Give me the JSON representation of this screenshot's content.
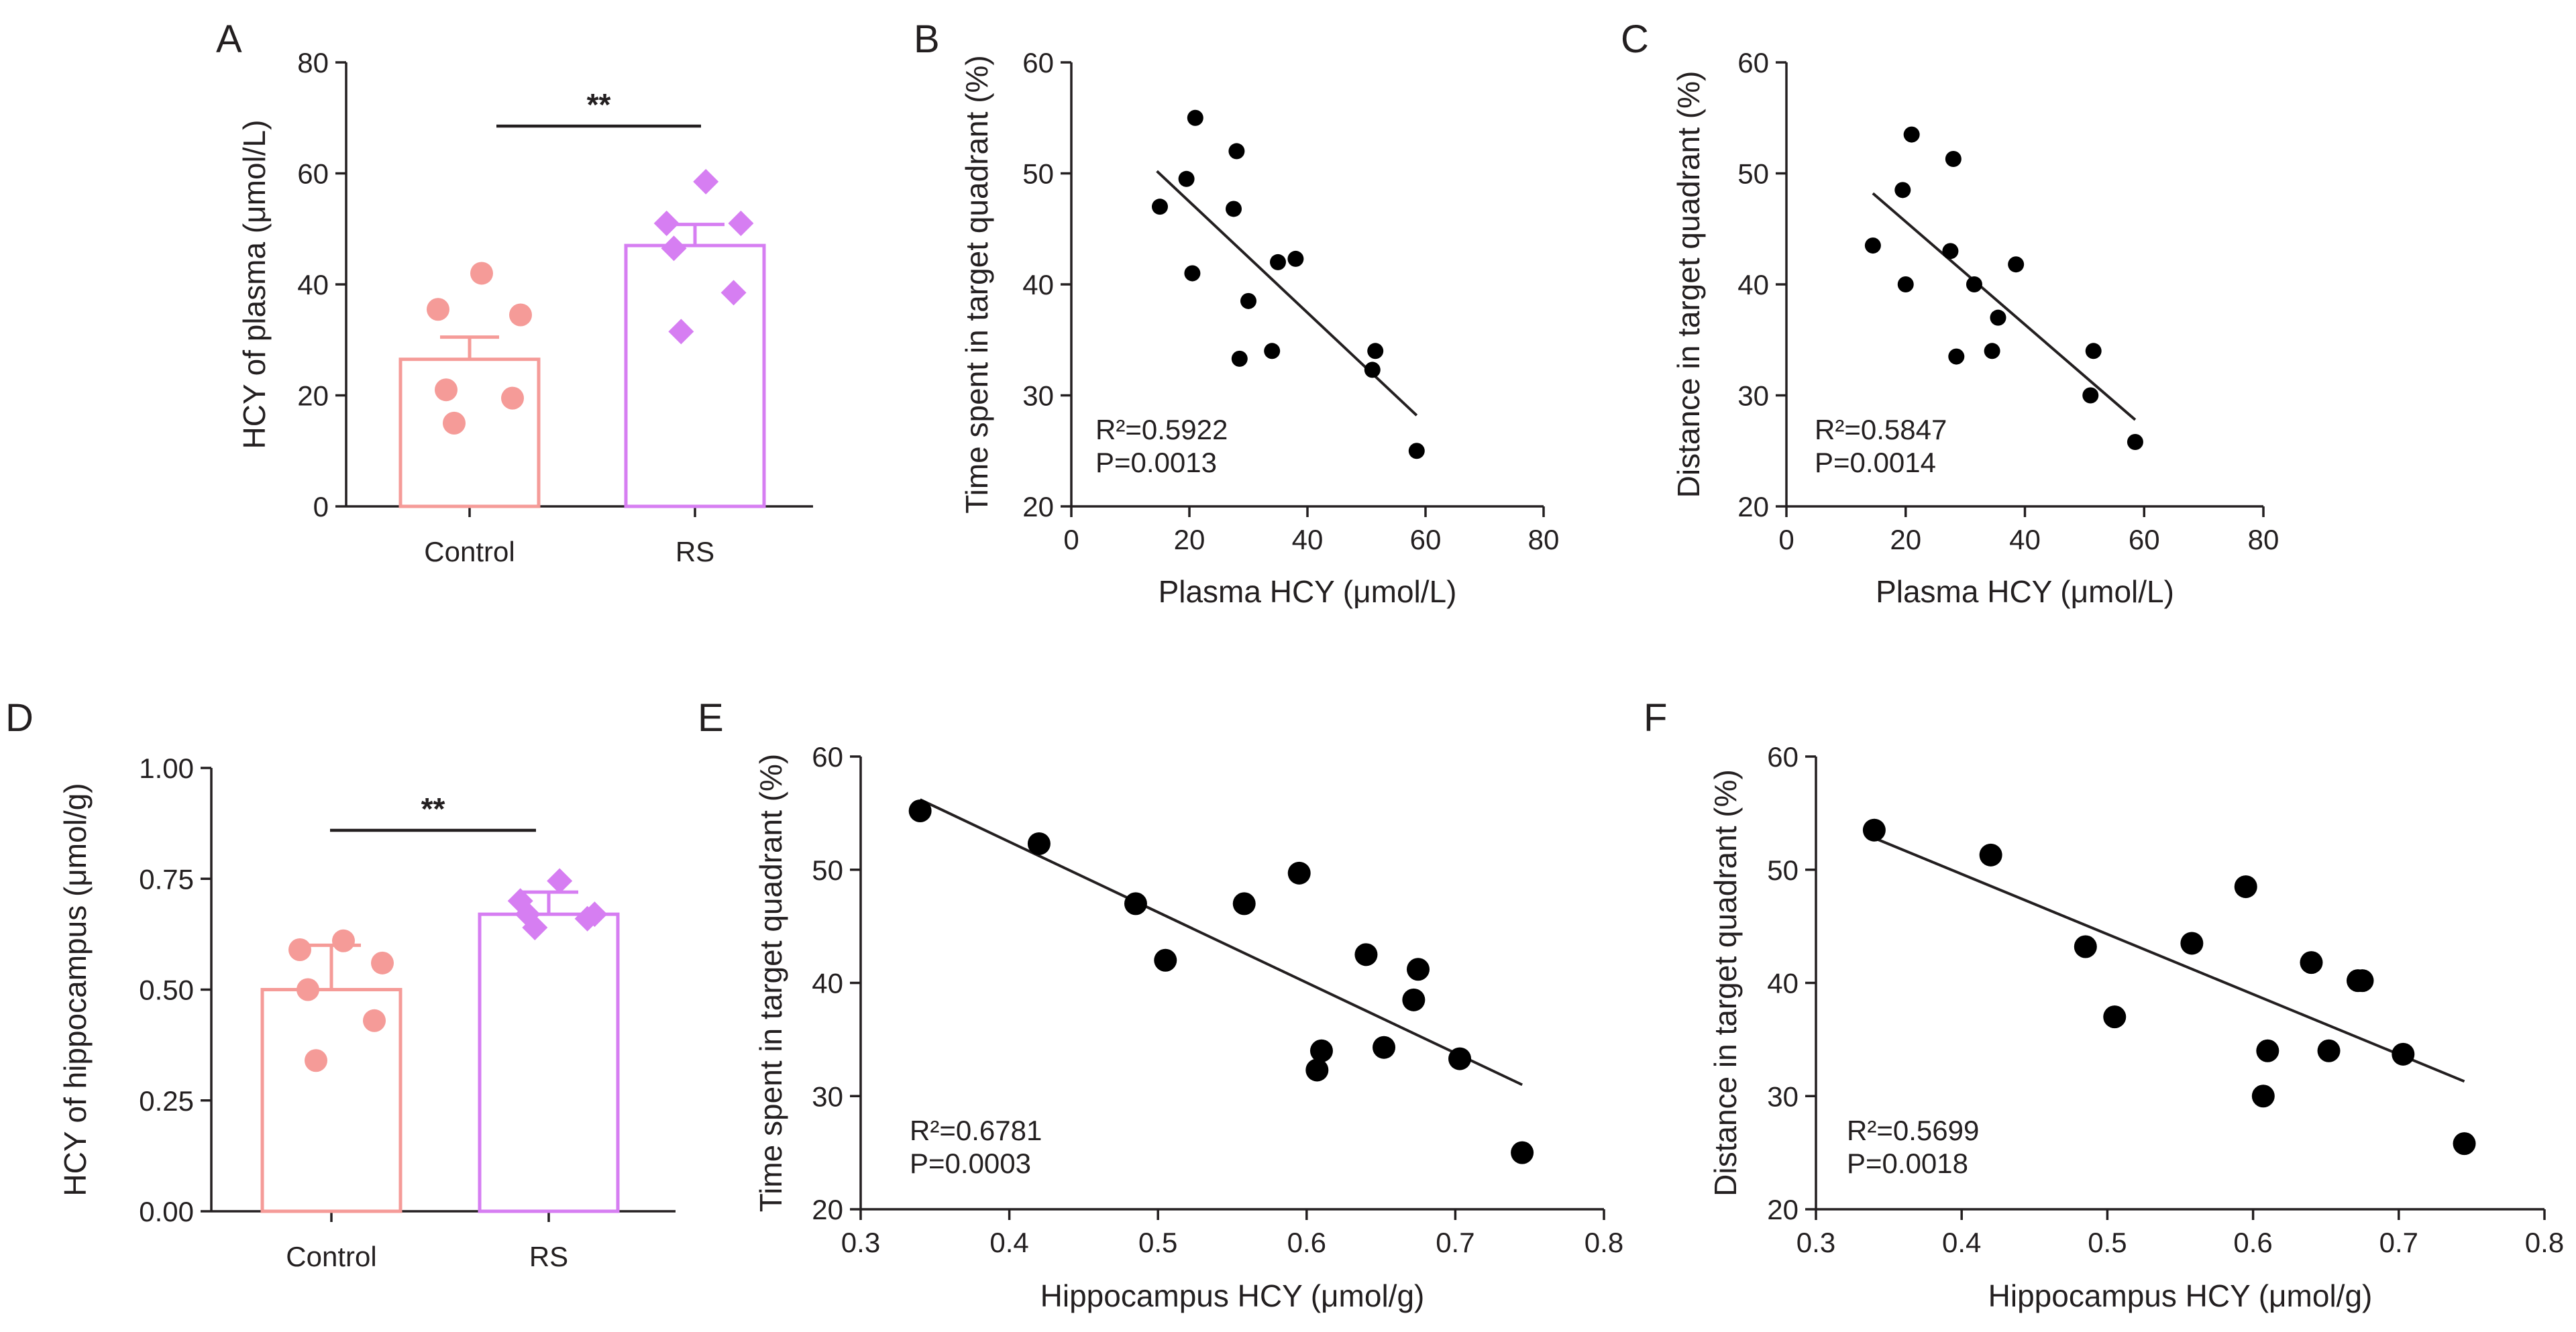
{
  "figure": {
    "colors": {
      "control": "#f59b98",
      "rs": "#d67ef2",
      "ink": "#231f20"
    }
  },
  "chart_data": [
    {
      "id": "A",
      "panel_label": "A",
      "type": "bar",
      "ylabel": "HCY of plasma (μmol/L)",
      "categories": [
        "Control",
        "RS"
      ],
      "means": [
        26.5,
        47.0
      ],
      "sem": [
        4.0,
        3.8
      ],
      "points": [
        [
          42.0,
          35.5,
          34.5,
          21.0,
          19.5,
          15.0
        ],
        [
          58.5,
          51.0,
          51.0,
          46.5,
          38.5,
          31.5
        ]
      ],
      "ylim": [
        0,
        80
      ],
      "yticks": [
        0,
        20,
        40,
        60,
        80
      ],
      "ytick_labels": [
        "0",
        "20",
        "40",
        "60",
        "80"
      ],
      "significance": "**"
    },
    {
      "id": "B",
      "panel_label": "B",
      "type": "scatter",
      "xlabel": "Plasma HCY (μmol/L)",
      "ylabel": "Time spent in target quadrant (%)",
      "x": [
        21.0,
        19.5,
        15.0,
        20.5,
        28.0,
        27.5,
        30.0,
        35.0,
        38.0,
        28.5,
        34.0,
        51.5,
        51.0,
        58.5
      ],
      "y": [
        55.0,
        49.5,
        47.0,
        41.0,
        52.0,
        46.8,
        38.5,
        42.0,
        42.3,
        33.3,
        34.0,
        34.0,
        32.3,
        25.0
      ],
      "fit": {
        "x": [
          14.5,
          58.5
        ],
        "y": [
          50.2,
          28.2
        ]
      },
      "xlim": [
        0,
        80
      ],
      "ylim": [
        20,
        60
      ],
      "xticks": [
        0,
        20,
        40,
        60,
        80
      ],
      "xtick_labels": [
        "0",
        "20",
        "40",
        "60",
        "80"
      ],
      "yticks": [
        20,
        30,
        40,
        50,
        60
      ],
      "ytick_labels": [
        "20",
        "30",
        "40",
        "50",
        "60"
      ],
      "stats": {
        "r2": "R²=0.5922",
        "p": "P=0.0013"
      }
    },
    {
      "id": "C",
      "panel_label": "C",
      "type": "scatter",
      "xlabel": "Plasma HCY (μmol/L)",
      "ylabel": "Distance in target quadrant (%)",
      "x": [
        21.0,
        19.5,
        28.0,
        14.5,
        20.0,
        27.5,
        31.5,
        38.5,
        35.5,
        28.5,
        34.5,
        51.5,
        51.0,
        58.5
      ],
      "y": [
        53.5,
        48.5,
        51.3,
        43.5,
        40.0,
        43.0,
        40.0,
        41.8,
        37.0,
        33.5,
        34.0,
        34.0,
        30.0,
        25.8
      ],
      "fit": {
        "x": [
          14.5,
          58.5
        ],
        "y": [
          48.2,
          27.8
        ]
      },
      "xlim": [
        0,
        80
      ],
      "ylim": [
        20,
        60
      ],
      "xticks": [
        0,
        20,
        40,
        60,
        80
      ],
      "xtick_labels": [
        "0",
        "20",
        "40",
        "60",
        "80"
      ],
      "yticks": [
        20,
        30,
        40,
        50,
        60
      ],
      "ytick_labels": [
        "20",
        "30",
        "40",
        "50",
        "60"
      ],
      "stats": {
        "r2": "R²=0.5847",
        "p": "P=0.0014"
      }
    },
    {
      "id": "D",
      "panel_label": "D",
      "type": "bar",
      "ylabel": "HCY of hippocampus (μmol/g)",
      "categories": [
        "Control",
        "RS"
      ],
      "means": [
        0.5,
        0.67
      ],
      "sem": [
        0.1,
        0.05
      ],
      "points": [
        [
          0.61,
          0.59,
          0.56,
          0.5,
          0.43,
          0.34
        ],
        [
          0.745,
          0.7,
          0.67,
          0.67,
          0.66,
          0.64
        ]
      ],
      "ylim": [
        0,
        1
      ],
      "yticks": [
        0,
        0.25,
        0.5,
        0.75,
        1
      ],
      "ytick_labels": [
        "0.00",
        "0.25",
        "0.50",
        "0.75",
        "1.00"
      ],
      "significance": "**"
    },
    {
      "id": "E",
      "panel_label": "E",
      "type": "scatter",
      "xlabel": "Hippocampus HCY (μmol/g)",
      "ylabel": "Time spent in target quadrant (%)",
      "x": [
        0.34,
        0.42,
        0.485,
        0.505,
        0.558,
        0.595,
        0.64,
        0.675,
        0.672,
        0.61,
        0.607,
        0.652,
        0.703,
        0.745
      ],
      "y": [
        55.2,
        52.3,
        47.0,
        42.0,
        47.0,
        49.7,
        42.5,
        41.2,
        38.5,
        34.0,
        32.3,
        34.3,
        33.3,
        25.0
      ],
      "fit": {
        "x": [
          0.34,
          0.745
        ],
        "y": [
          56.2,
          31.0
        ]
      },
      "xlim": [
        0.3,
        0.8
      ],
      "ylim": [
        20,
        60
      ],
      "xticks": [
        0.3,
        0.4,
        0.5,
        0.6,
        0.7,
        0.8
      ],
      "xtick_labels": [
        "0.3",
        "0.4",
        "0.5",
        "0.6",
        "0.7",
        "0.8"
      ],
      "yticks": [
        20,
        30,
        40,
        50,
        60
      ],
      "ytick_labels": [
        "20",
        "30",
        "40",
        "50",
        "60"
      ],
      "stats": {
        "r2": "R²=0.6781",
        "p": "P=0.0003"
      }
    },
    {
      "id": "F",
      "panel_label": "F",
      "type": "scatter",
      "xlabel": "Hippocampus HCY (μmol/g)",
      "ylabel": "Distance in target quadrant (%)",
      "x": [
        0.34,
        0.42,
        0.485,
        0.505,
        0.558,
        0.595,
        0.64,
        0.675,
        0.672,
        0.61,
        0.607,
        0.652,
        0.703,
        0.745
      ],
      "y": [
        53.5,
        51.3,
        43.2,
        37.0,
        43.5,
        48.5,
        41.8,
        40.2,
        40.2,
        34.0,
        30.0,
        34.0,
        33.7,
        25.8
      ],
      "fit": {
        "x": [
          0.34,
          0.745
        ],
        "y": [
          52.8,
          31.3
        ]
      },
      "xlim": [
        0.3,
        0.8
      ],
      "ylim": [
        20,
        60
      ],
      "xticks": [
        0.3,
        0.4,
        0.5,
        0.6,
        0.7,
        0.8
      ],
      "xtick_labels": [
        "0.3",
        "0.4",
        "0.5",
        "0.6",
        "0.7",
        "0.8"
      ],
      "yticks": [
        20,
        30,
        40,
        50,
        60
      ],
      "ytick_labels": [
        "20",
        "30",
        "40",
        "50",
        "60"
      ],
      "stats": {
        "r2": "R²=0.5699",
        "p": "P=0.0018"
      }
    }
  ]
}
